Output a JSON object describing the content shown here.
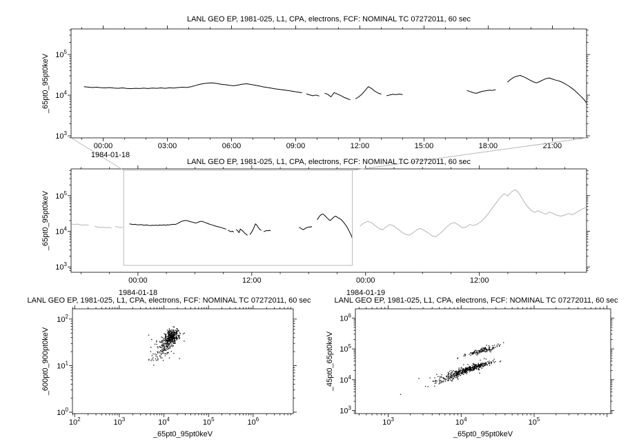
{
  "window": {
    "background": "#ffffff"
  },
  "colors": {
    "series": "#000000",
    "context_gray": "#b3b3b3",
    "selection": "#b8b8b8",
    "axis": "#000000"
  },
  "chart_data": [
    {
      "id": "top-timeseries",
      "type": "line",
      "title": "LANL GEO EP, 1981-025, L1, CPA, electrons, FCF: NOMINAL TC 07272011, 60 sec",
      "ylabel": "_65pt0_95pt0keV",
      "xaxis": {
        "kind": "time",
        "lim": [
          -1.5,
          22.6
        ],
        "minor_step": 1,
        "major": [
          {
            "t": 0,
            "label": "00:00"
          },
          {
            "t": 3,
            "label": "03:00"
          },
          {
            "t": 6,
            "label": "06:00"
          },
          {
            "t": 9,
            "label": "09:00"
          },
          {
            "t": 12,
            "label": "12:00"
          },
          {
            "t": 15,
            "label": "15:00"
          },
          {
            "t": 18,
            "label": "18:00"
          },
          {
            "t": 21,
            "label": "21:00"
          }
        ],
        "date_labels": [
          {
            "t": 0,
            "label": "1984-01-18"
          }
        ]
      },
      "yaxis": {
        "kind": "log",
        "lim": [
          2.95,
          5.63
        ],
        "decades": [
          3,
          4,
          5
        ]
      },
      "segments": [
        [
          [
            -0.9,
            16200
          ],
          [
            -0.7,
            15800
          ],
          [
            -0.5,
            15400
          ],
          [
            -0.3,
            15700
          ],
          [
            -0.1,
            15300
          ],
          [
            0.1,
            15100
          ],
          [
            0.3,
            15400
          ],
          [
            0.5,
            15000
          ],
          [
            0.7,
            14800
          ],
          [
            0.9,
            15100
          ],
          [
            1.1,
            14700
          ],
          [
            1.3,
            14500
          ],
          [
            1.5,
            14800
          ],
          [
            1.7,
            14600
          ],
          [
            1.9,
            14900
          ],
          [
            2.1,
            14600
          ],
          [
            2.3,
            15000
          ],
          [
            2.5,
            14800
          ],
          [
            2.7,
            15100
          ],
          [
            2.9,
            14800
          ],
          [
            3.1,
            15200
          ],
          [
            3.3,
            15000
          ],
          [
            3.5,
            15400
          ],
          [
            3.7,
            15700
          ],
          [
            3.9,
            15500
          ],
          [
            4.1,
            16100
          ],
          [
            4.3,
            17200
          ],
          [
            4.5,
            18400
          ],
          [
            4.7,
            19300
          ],
          [
            4.9,
            19900
          ],
          [
            5.1,
            20100
          ],
          [
            5.3,
            19500
          ],
          [
            5.5,
            18700
          ],
          [
            5.7,
            18100
          ],
          [
            5.9,
            17500
          ],
          [
            6.1,
            17100
          ],
          [
            6.3,
            17700
          ],
          [
            6.5,
            18700
          ],
          [
            6.7,
            19100
          ],
          [
            6.9,
            18400
          ],
          [
            7.1,
            17600
          ],
          [
            7.3,
            16800
          ],
          [
            7.5,
            16000
          ],
          [
            7.7,
            15400
          ],
          [
            7.9,
            14800
          ],
          [
            8.1,
            14200
          ],
          [
            8.3,
            13700
          ],
          [
            8.5,
            13300
          ],
          [
            8.7,
            12900
          ],
          [
            8.9,
            12400
          ],
          [
            9.1,
            11900
          ],
          [
            9.3,
            11500
          ]
        ],
        [
          [
            9.5,
            10800
          ],
          [
            9.65,
            10200
          ],
          [
            9.8,
            9700
          ],
          [
            9.95,
            10100
          ],
          [
            10.1,
            9500
          ]
        ],
        [
          [
            10.35,
            11200
          ],
          [
            10.5,
            10500
          ],
          [
            10.65,
            9100
          ],
          [
            10.8,
            11600
          ],
          [
            10.95,
            10700
          ],
          [
            11.1,
            9900
          ],
          [
            11.25,
            8900
          ],
          [
            11.4,
            8300
          ],
          [
            11.55,
            7700
          ]
        ],
        [
          [
            11.8,
            8100
          ],
          [
            11.95,
            9100
          ],
          [
            12.1,
            10600
          ],
          [
            12.25,
            13100
          ],
          [
            12.4,
            16200
          ],
          [
            12.55,
            14600
          ],
          [
            12.7,
            12600
          ],
          [
            12.85,
            11300
          ],
          [
            13.0,
            10600
          ]
        ],
        [
          [
            13.25,
            9700
          ],
          [
            13.4,
            10100
          ],
          [
            13.55,
            10500
          ],
          [
            13.7,
            10300
          ],
          [
            13.85,
            10700
          ],
          [
            14.0,
            10300
          ]
        ],
        [
          [
            17.0,
            13100
          ],
          [
            17.15,
            12300
          ],
          [
            17.3,
            11500
          ],
          [
            17.45,
            11100
          ],
          [
            17.6,
            11900
          ],
          [
            17.75,
            12500
          ],
          [
            17.9,
            12900
          ],
          [
            18.05,
            13300
          ],
          [
            18.2,
            13100
          ],
          [
            18.35,
            13700
          ]
        ],
        [
          [
            18.9,
            21000
          ],
          [
            19.05,
            24500
          ],
          [
            19.2,
            27500
          ],
          [
            19.35,
            29500
          ],
          [
            19.5,
            30500
          ],
          [
            19.65,
            28500
          ],
          [
            19.8,
            26000
          ],
          [
            19.95,
            23500
          ],
          [
            20.1,
            21500
          ],
          [
            20.25,
            20000
          ],
          [
            20.4,
            21500
          ],
          [
            20.55,
            23500
          ],
          [
            20.7,
            25500
          ],
          [
            20.85,
            26500
          ],
          [
            21.0,
            25000
          ],
          [
            21.15,
            23500
          ],
          [
            21.3,
            22500
          ],
          [
            21.45,
            21000
          ],
          [
            21.6,
            19000
          ],
          [
            21.75,
            17000
          ],
          [
            21.9,
            15000
          ],
          [
            22.05,
            13000
          ],
          [
            22.2,
            11000
          ],
          [
            22.35,
            9200
          ],
          [
            22.5,
            7600
          ],
          [
            22.6,
            6400
          ]
        ]
      ]
    },
    {
      "id": "context-overview",
      "type": "line",
      "title": "LANL GEO EP, 1981-025, L1, CPA, electrons, FCF: NOMINAL TC 07272011, 60 sec",
      "ylabel": "_65pt0_95pt0keV",
      "xaxis": {
        "kind": "time",
        "lim": [
          -7.05,
          47.3
        ],
        "minor_step": 3,
        "major": [
          {
            "t": 0,
            "label": "00:00"
          },
          {
            "t": 12,
            "label": "12:00"
          },
          {
            "t": 24,
            "label": "00:00"
          },
          {
            "t": 36,
            "label": "12:00"
          }
        ],
        "date_labels": [
          {
            "t": 0,
            "label": "1984-01-18"
          },
          {
            "t": 24,
            "label": "1984-01-19"
          }
        ]
      },
      "yaxis": {
        "kind": "log",
        "lim": [
          2.85,
          5.75
        ],
        "decades": [
          3,
          4,
          5
        ]
      },
      "black_from": 0,
      "segments": [],
      "gray_segments": [
        [
          [
            -7.0,
            16000
          ],
          [
            -6.7,
            15600
          ],
          [
            -6.4,
            15900
          ],
          [
            -6.1,
            15300
          ],
          [
            -5.8,
            14900
          ],
          [
            -5.5,
            15300
          ],
          [
            -5.2,
            14700
          ]
        ],
        [
          [
            -4.6,
            14100
          ],
          [
            -4.3,
            13300
          ],
          [
            -4.0,
            12700
          ],
          [
            -3.7,
            13100
          ],
          [
            -3.4,
            12500
          ],
          [
            -3.1,
            12900
          ],
          [
            -2.8,
            12300
          ]
        ],
        [
          [
            -2.4,
            13600
          ],
          [
            -2.1,
            13100
          ],
          [
            -1.8,
            12700
          ],
          [
            -1.6,
            13100
          ]
        ],
        [
          [
            23.4,
            14000
          ],
          [
            23.8,
            17000
          ],
          [
            24.2,
            19000
          ],
          [
            24.6,
            17500
          ],
          [
            25.0,
            14500
          ],
          [
            25.4,
            12000
          ],
          [
            25.8,
            11000
          ],
          [
            26.2,
            13500
          ],
          [
            26.6,
            15500
          ],
          [
            27.0,
            14000
          ],
          [
            27.4,
            11500
          ],
          [
            27.8,
            9500
          ],
          [
            28.2,
            8200
          ],
          [
            28.6,
            7800
          ],
          [
            29.0,
            9000
          ],
          [
            29.4,
            11000
          ],
          [
            29.8,
            12000
          ],
          [
            30.2,
            10500
          ],
          [
            30.6,
            9000
          ],
          [
            31.0,
            7500
          ],
          [
            31.4,
            7000
          ],
          [
            31.8,
            8500
          ],
          [
            32.2,
            10500
          ],
          [
            32.6,
            13500
          ],
          [
            33.0,
            16500
          ],
          [
            33.4,
            17500
          ],
          [
            33.8,
            15000
          ],
          [
            34.2,
            12500
          ],
          [
            34.6,
            13000
          ],
          [
            35.0,
            15500
          ],
          [
            35.4,
            14500
          ],
          [
            35.8,
            16000
          ],
          [
            36.2,
            19000
          ],
          [
            36.6,
            24000
          ],
          [
            37.0,
            33000
          ],
          [
            37.4,
            46000
          ],
          [
            37.8,
            64000
          ],
          [
            38.2,
            88000
          ],
          [
            38.6,
            112000
          ],
          [
            39.0,
            98000
          ],
          [
            39.4,
            128000
          ],
          [
            39.8,
            148000
          ],
          [
            40.2,
            115000
          ],
          [
            40.6,
            76000
          ],
          [
            41.0,
            52000
          ],
          [
            41.4,
            40000
          ],
          [
            41.8,
            34000
          ],
          [
            42.2,
            37500
          ],
          [
            42.6,
            33000
          ],
          [
            43.0,
            30000
          ],
          [
            43.4,
            34500
          ],
          [
            43.8,
            31000
          ],
          [
            44.2,
            28000
          ],
          [
            44.6,
            26500
          ],
          [
            45.0,
            28500
          ],
          [
            45.4,
            31500
          ],
          [
            45.8,
            29000
          ],
          [
            46.2,
            33500
          ],
          [
            46.6,
            38500
          ],
          [
            47.0,
            44000
          ],
          [
            47.3,
            47000
          ]
        ]
      ],
      "selection": {
        "t0": -1.5,
        "t1": 22.6
      }
    },
    {
      "id": "scatter-600-900",
      "type": "scatter",
      "title": "LANL GEO EP, 1981-025, L1, CPA, electrons, FCF: NOMINAL TC 07272011, 60 sec",
      "xlabel": "_65pt0_95pt0keV",
      "ylabel": "_600pt0_900pt0keV",
      "xaxis": {
        "kind": "log",
        "lim": [
          1.95,
          6.9
        ],
        "decades": [
          2,
          3,
          4,
          5,
          6
        ]
      },
      "yaxis": {
        "kind": "log",
        "lim": [
          -0.03,
          2.22
        ],
        "decades": [
          0,
          1,
          2
        ]
      },
      "seed": 7,
      "clusters": [
        {
          "n": 280,
          "cx": 4.18,
          "cy": 1.62,
          "along": 0.06,
          "slope": 0.5,
          "nx": 0.05,
          "ny": 0.07
        },
        {
          "n": 90,
          "cx": 4.08,
          "cy": 1.48,
          "along": 0.09,
          "slope": 0.8,
          "nx": 0.06,
          "ny": 0.08
        },
        {
          "n": 60,
          "cx": 3.95,
          "cy": 1.3,
          "along": 0.1,
          "slope": 0.6,
          "nx": 0.09,
          "ny": 0.09
        },
        {
          "n": 30,
          "cx": 4.05,
          "cy": 1.5,
          "along": 0.2,
          "slope": 0.4,
          "nx": 0.15,
          "ny": 0.15
        }
      ]
    },
    {
      "id": "scatter-45-65",
      "type": "scatter",
      "title": "LANL GEO EP, 1981-025, L1, CPA, electrons, FCF: NOMINAL TC 07272011, 60 sec",
      "xlabel": "_65pt0_95pt0keV",
      "ylabel": "_45pt0_65pt0keV",
      "xaxis": {
        "kind": "log",
        "lim": [
          2.55,
          6.05
        ],
        "decades": [
          3,
          4,
          5
        ]
      },
      "yaxis": {
        "kind": "log",
        "lim": [
          2.9,
          6.3
        ],
        "decades": [
          3,
          4,
          5,
          6
        ]
      },
      "seed": 13,
      "clusters": [
        {
          "n": 320,
          "cx": 4.12,
          "cy": 4.35,
          "along": 0.15,
          "slope": 0.75,
          "nx": 0.03,
          "ny": 0.04
        },
        {
          "n": 120,
          "cx": 4.3,
          "cy": 4.95,
          "along": 0.12,
          "slope": 0.7,
          "nx": 0.025,
          "ny": 0.035
        },
        {
          "n": 80,
          "cx": 3.82,
          "cy": 4.05,
          "along": 0.12,
          "slope": 0.9,
          "nx": 0.04,
          "ny": 0.05
        },
        {
          "n": 40,
          "cx": 4.0,
          "cy": 4.3,
          "along": 0.25,
          "slope": 0.8,
          "nx": 0.08,
          "ny": 0.08
        }
      ]
    }
  ]
}
